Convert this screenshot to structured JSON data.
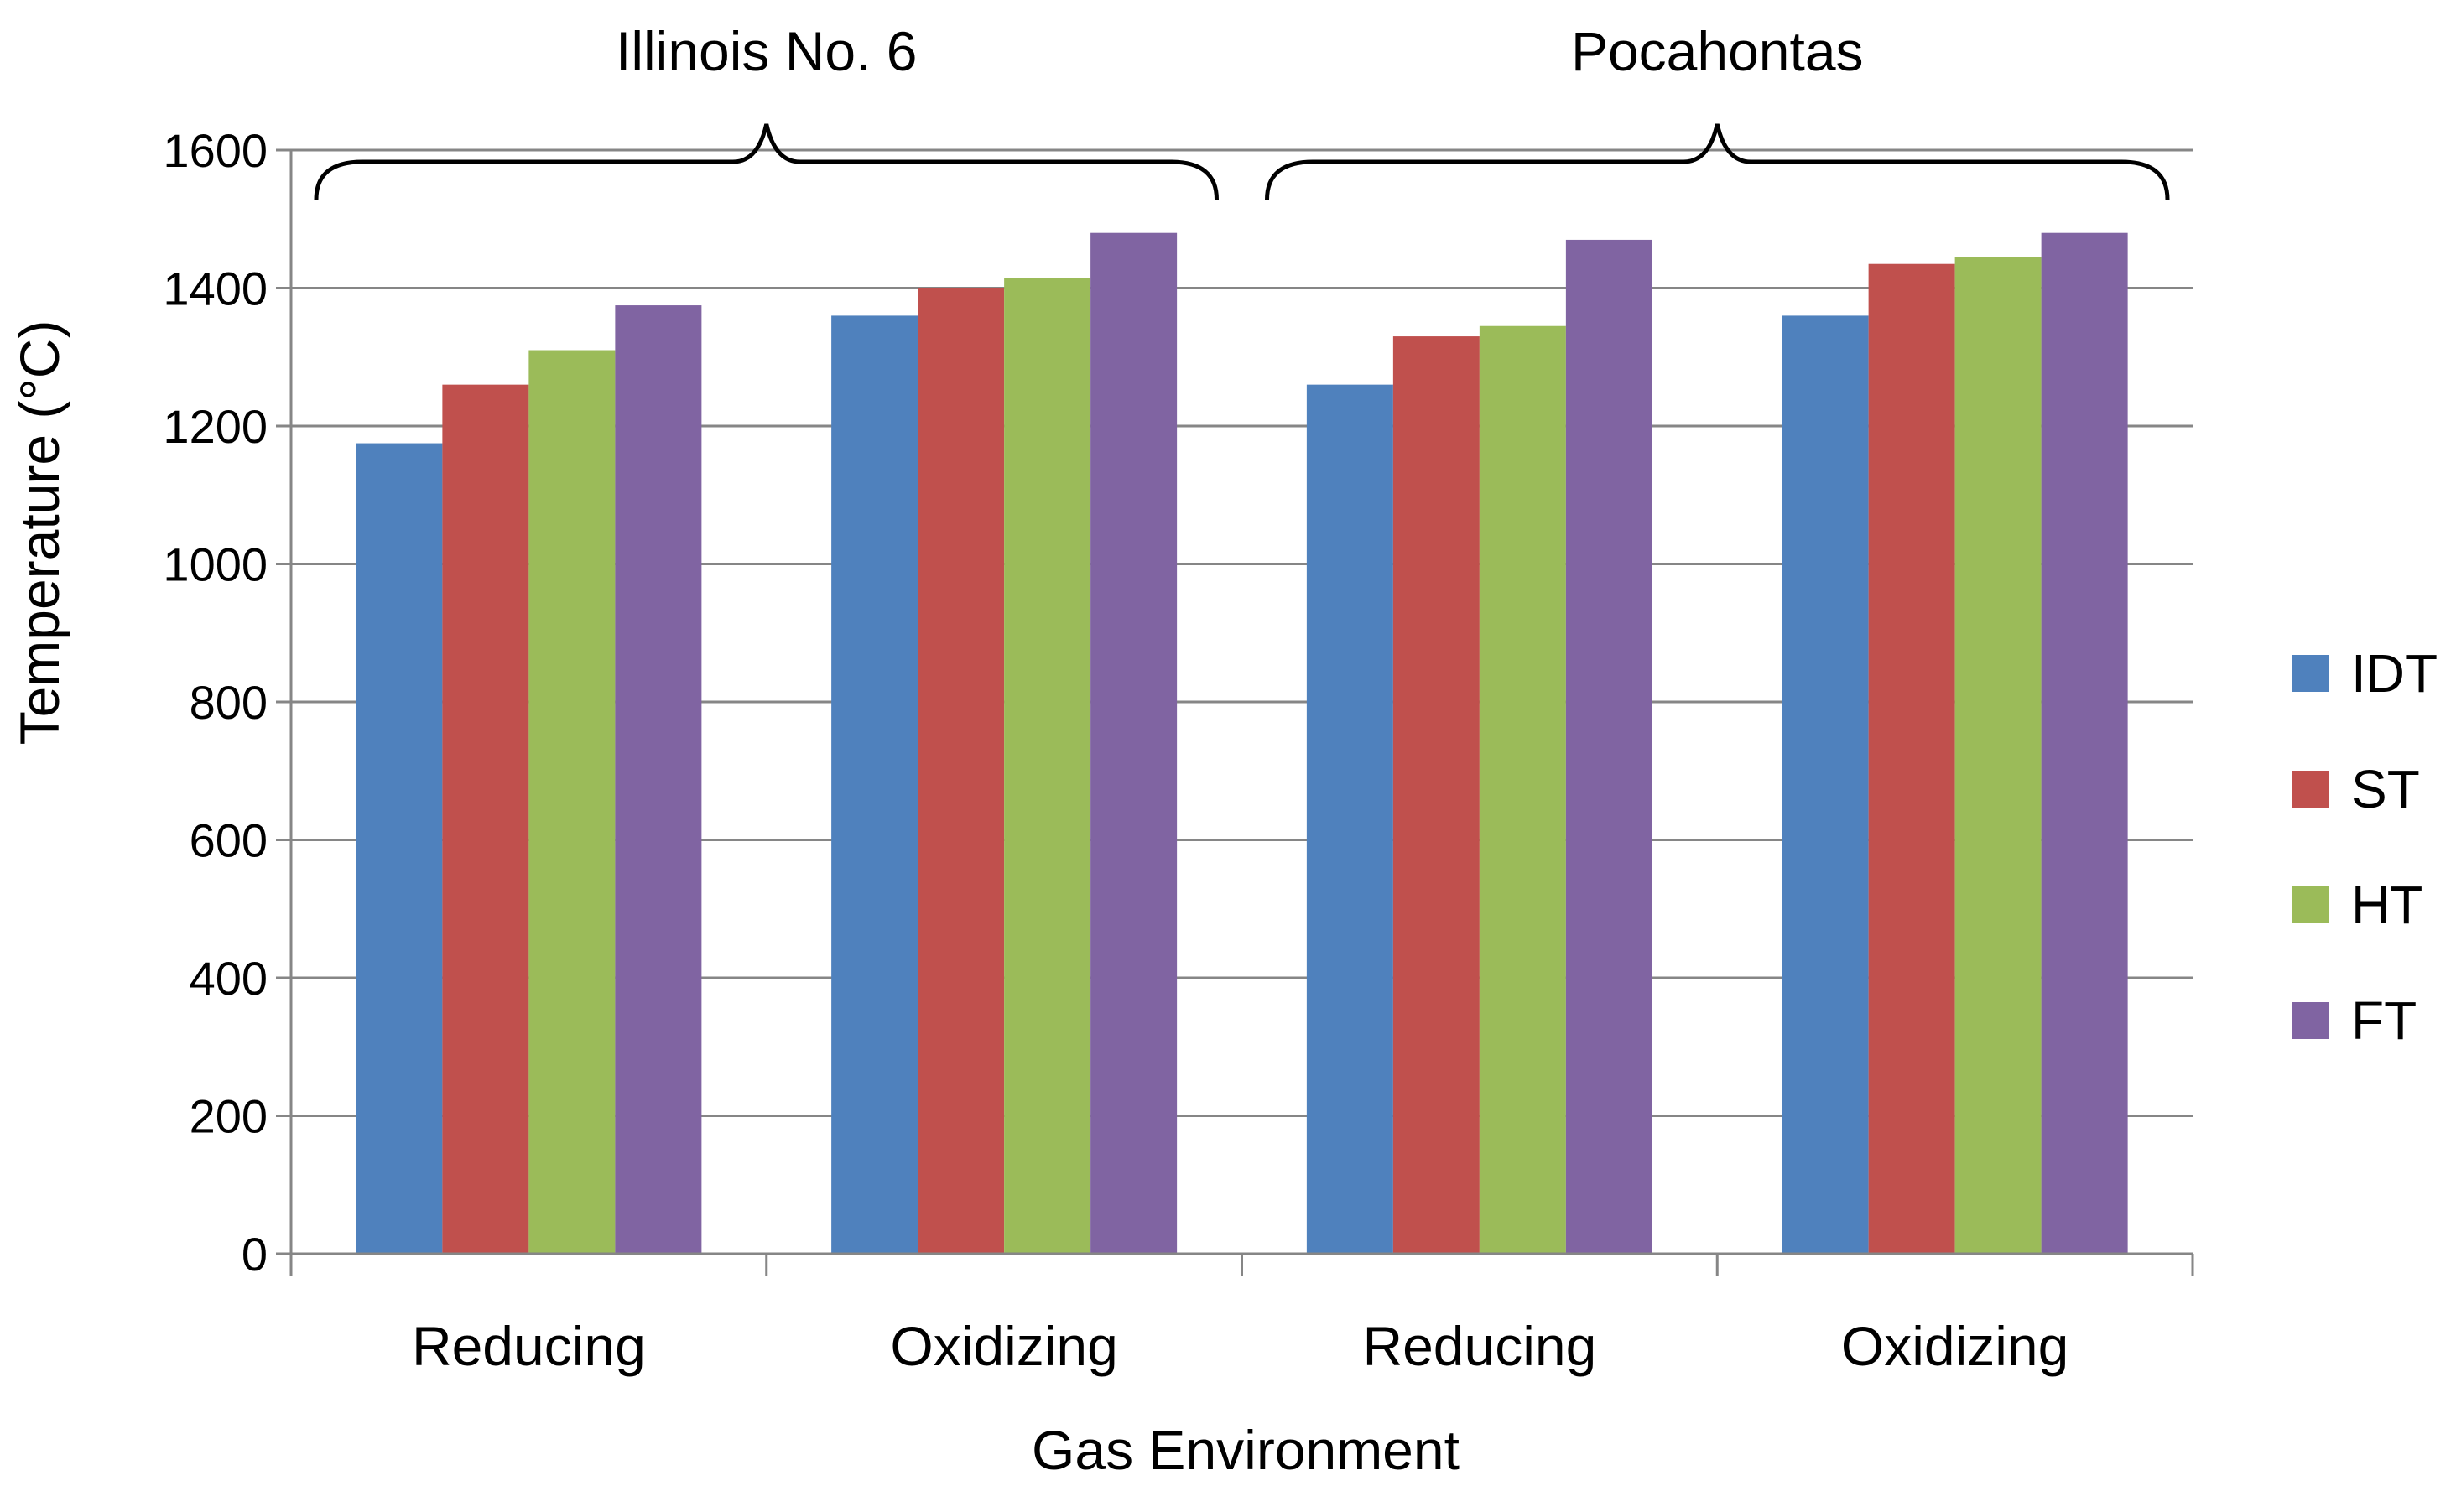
{
  "chart_data": {
    "type": "bar",
    "title": "",
    "xlabel": "Gas Environment",
    "ylabel": "Temperature (°C)",
    "ylim": [
      0,
      1600
    ],
    "yticks": [
      "0",
      "200",
      "400",
      "600",
      "800",
      "1000",
      "1200",
      "1400",
      "1600"
    ],
    "grid": true,
    "legend_position": "right",
    "categories": [
      "Reducing",
      "Oxidizing",
      "Reducing",
      "Oxidizing"
    ],
    "groups": [
      {
        "label": "Illinois No. 6",
        "categories": [
          0,
          1
        ]
      },
      {
        "label": "Pocahontas",
        "categories": [
          2,
          3
        ]
      }
    ],
    "series": [
      {
        "name": "IDT",
        "color": "#4F81BD",
        "values": [
          1175,
          1360,
          1260,
          1360
        ]
      },
      {
        "name": "ST",
        "color": "#C0504D",
        "values": [
          1260,
          1400,
          1330,
          1435
        ]
      },
      {
        "name": "HT",
        "color": "#9BBB59",
        "values": [
          1310,
          1415,
          1345,
          1445
        ]
      },
      {
        "name": "FT",
        "color": "#8064A2",
        "values": [
          1375,
          1480,
          1470,
          1480
        ]
      }
    ]
  }
}
